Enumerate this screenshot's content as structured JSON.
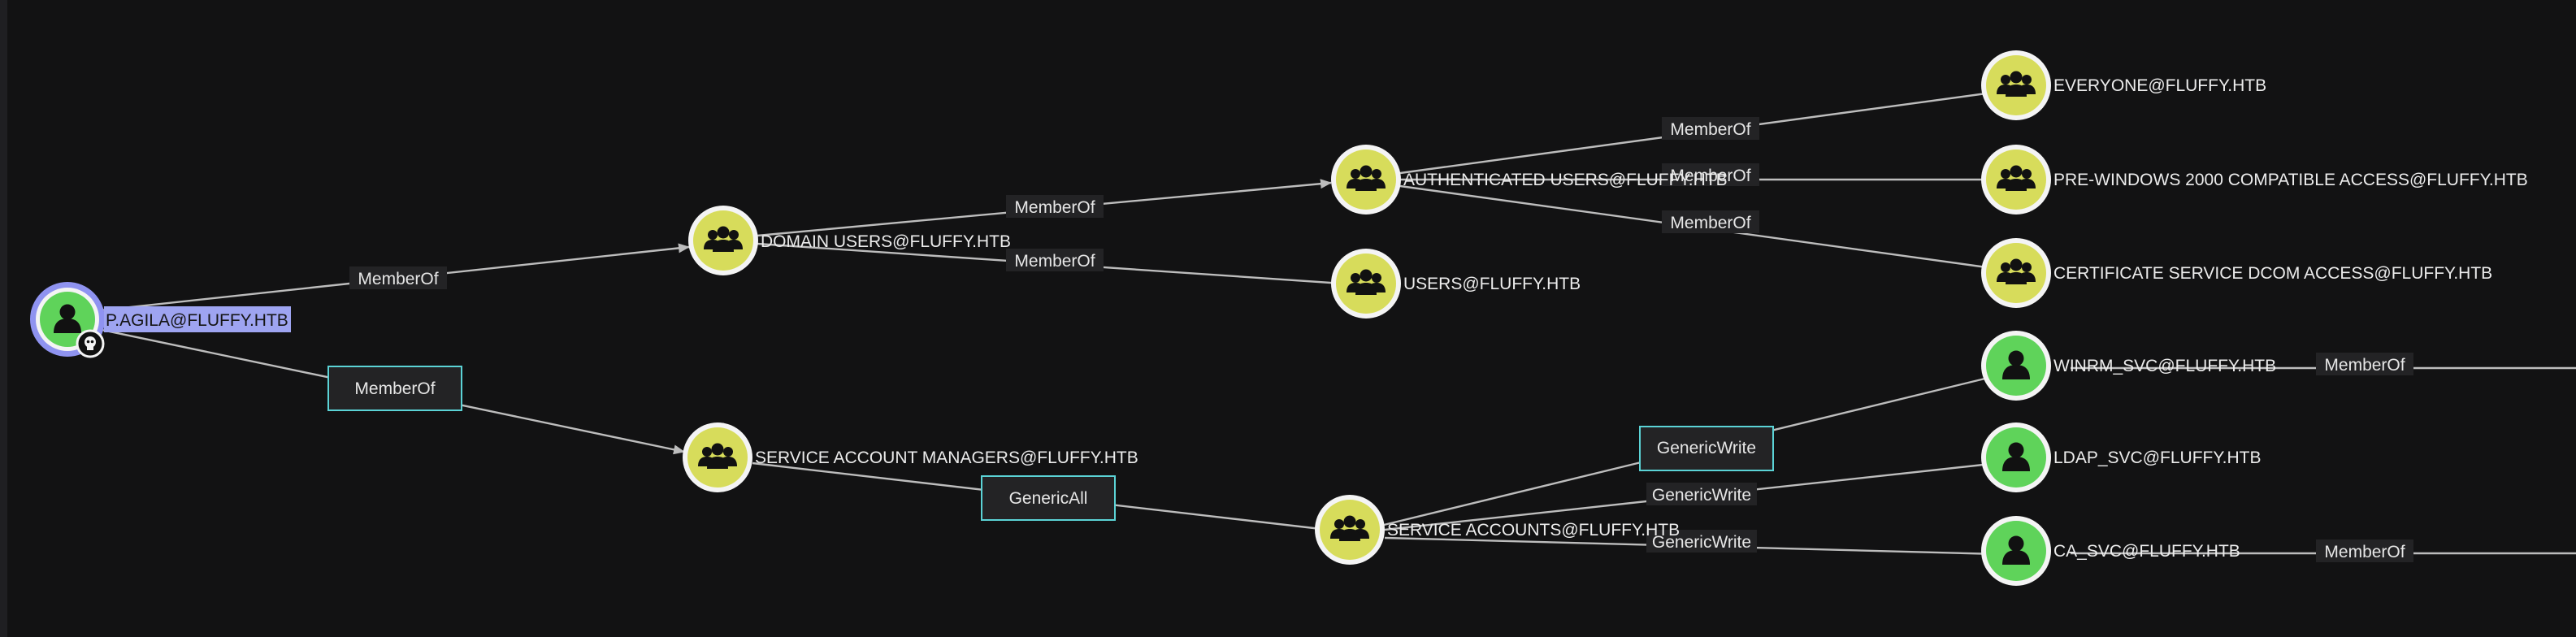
{
  "colors": {
    "user_node": "#5fd35a",
    "group_node": "#d7dc5b",
    "node_ring": "#f4f4f4",
    "selected_ring": "#8f93f0",
    "selected_label_bg": "#9ea4f1",
    "edge": "#bdbdbd",
    "highlight_box": "#5bd3d6"
  },
  "nodes": {
    "pagila": {
      "label": "P.AGILA@FLUFFY.HTB",
      "icon": "user-icon",
      "badge": "owned-skull-icon"
    },
    "domain_users": {
      "label": "DOMAIN USERS@FLUFFY.HTB",
      "icon": "group-icon"
    },
    "service_account_managers": {
      "label": "SERVICE ACCOUNT MANAGERS@FLUFFY.HTB",
      "icon": "group-icon"
    },
    "authenticated_users": {
      "label": "AUTHENTICATED USERS@FLUFFY.HTB",
      "icon": "group-icon"
    },
    "users": {
      "label": "USERS@FLUFFY.HTB",
      "icon": "group-icon"
    },
    "service_accounts": {
      "label": "SERVICE ACCOUNTS@FLUFFY.HTB",
      "icon": "group-icon"
    },
    "everyone": {
      "label": "EVERYONE@FLUFFY.HTB",
      "icon": "group-icon"
    },
    "pre_windows_2000": {
      "label": "PRE-WINDOWS 2000 COMPATIBLE ACCESS@FLUFFY.HTB",
      "icon": "group-icon"
    },
    "cert_service_dcom": {
      "label": "CERTIFICATE SERVICE DCOM ACCESS@FLUFFY.HTB",
      "icon": "group-icon"
    },
    "winrm_svc": {
      "label": "WINRM_SVC@FLUFFY.HTB",
      "icon": "user-icon"
    },
    "ldap_svc": {
      "label": "LDAP_SVC@FLUFFY.HTB",
      "icon": "user-icon"
    },
    "ca_svc": {
      "label": "CA_SVC@FLUFFY.HTB",
      "icon": "user-icon"
    }
  },
  "edges": {
    "pagila_domain_users": "MemberOf",
    "pagila_sam": "MemberOf",
    "domain_users_auth": "MemberOf",
    "domain_users_users": "MemberOf",
    "sam_service_accounts": "GenericAll",
    "auth_everyone": "MemberOf",
    "auth_prewin": "MemberOf",
    "auth_certdcom": "MemberOf",
    "sa_winrm": "GenericWrite",
    "sa_ldap": "GenericWrite",
    "sa_ca": "GenericWrite",
    "winrm_out": "MemberOf",
    "ca_out": "MemberOf"
  }
}
